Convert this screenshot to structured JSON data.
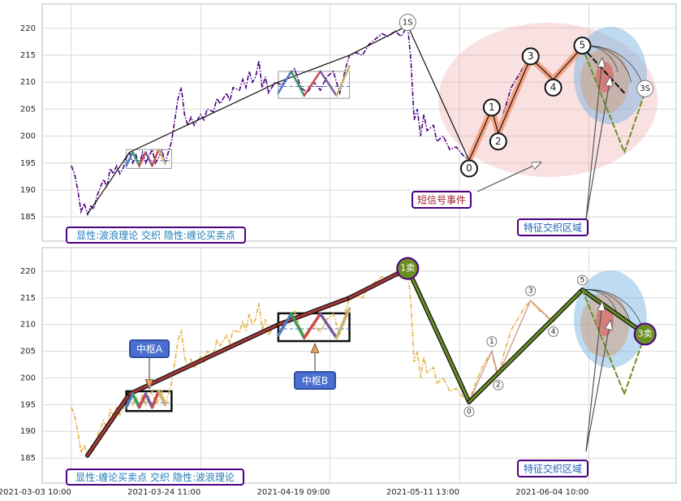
{
  "chart_data": [
    {
      "type": "line",
      "xlim": [
        -9,
        187
      ],
      "xticks": [
        0,
        40,
        80,
        120,
        160
      ],
      "ylim": [
        180.5,
        224.5
      ],
      "yticks": [
        185,
        190,
        195,
        200,
        205,
        210,
        215,
        220
      ],
      "grid": true,
      "series": [
        {
          "role": "price",
          "color": "#4b0082",
          "dash": "dashdot",
          "x": [
            0,
            1,
            2,
            3,
            4,
            5,
            6,
            7,
            8,
            10,
            11,
            12,
            13,
            14,
            15,
            16,
            17,
            18,
            19,
            20,
            21,
            22,
            23,
            25,
            26,
            27,
            28,
            29,
            31,
            32,
            33,
            34,
            35,
            36,
            37,
            38,
            40,
            41,
            42,
            44,
            45,
            46,
            48,
            49,
            50,
            52,
            53,
            54,
            55,
            56,
            57,
            58,
            59,
            60,
            61,
            63,
            65,
            67,
            69,
            71,
            73,
            75,
            77,
            79,
            81,
            83,
            85,
            86,
            88,
            90,
            92,
            94,
            96,
            98,
            100,
            102,
            104,
            105,
            106,
            107,
            108,
            109,
            110,
            112,
            113,
            115,
            117,
            119,
            121,
            123,
            125,
            127,
            129,
            130,
            131,
            132,
            134,
            136,
            138,
            140,
            142,
            144,
            146,
            148,
            149,
            151,
            153,
            155,
            158
          ],
          "values": [
            194.5,
            193,
            190,
            186,
            187.5,
            185.5,
            187,
            186.5,
            189,
            192,
            190.5,
            194,
            193,
            194.5,
            193,
            194,
            196,
            197,
            195,
            196.5,
            194.5,
            197,
            195,
            197.5,
            195,
            196,
            197.5,
            195,
            199,
            203,
            207,
            209,
            204,
            202,
            203.5,
            202,
            204,
            203,
            205,
            204.5,
            207,
            206,
            208,
            206.5,
            209,
            208.5,
            210.5,
            209,
            212,
            210,
            211,
            214,
            209,
            211,
            208,
            210,
            209.5,
            211,
            212.5,
            209,
            208,
            210,
            208.5,
            211,
            212,
            208,
            213,
            215,
            215.5,
            215,
            217,
            218,
            219,
            218.5,
            219.5,
            218.5,
            220.5,
            214,
            203,
            205,
            200,
            204,
            201,
            202,
            199,
            200,
            197.5,
            198,
            196.5,
            195.5,
            199,
            202,
            204,
            205,
            202,
            200.5,
            205,
            209,
            211,
            213,
            214.5,
            213,
            212,
            211,
            210.5,
            212,
            213.5,
            215,
            216.5
          ]
        },
        {
          "role": "segments",
          "color": "#f4a484",
          "width": 8,
          "x": [
            123,
            130,
            132,
            142,
            149,
            158
          ],
          "values": [
            195.5,
            205,
            200.5,
            214.5,
            210.5,
            216.5
          ]
        },
        {
          "role": "segments",
          "color": "#111111",
          "width": 1.2,
          "x": [
            5,
            18,
            64,
            86,
            104,
            123,
            130,
            132,
            142,
            149,
            158
          ],
          "values": [
            185.5,
            197,
            210,
            215,
            220.5,
            195.5,
            205,
            200.5,
            214.5,
            210.5,
            216.5
          ],
          "point_labels": [
            null,
            null,
            null,
            null,
            "1S",
            "0",
            "1",
            "2",
            "3",
            "4",
            "5"
          ]
        },
        {
          "role": "segments",
          "color": "#111111",
          "width": 2,
          "dash": "dashed",
          "x": [
            158,
            171
          ],
          "values": [
            216.5,
            208
          ]
        },
        {
          "role": "segments",
          "color": "#6b8e23",
          "width": 2,
          "dash": "dashed",
          "x": [
            158,
            171,
            177.4
          ],
          "values": [
            216.5,
            197,
            208.2
          ],
          "point_labels": [
            null,
            null,
            "3S"
          ]
        },
        {
          "role": "segments",
          "colors": [
            "#4a7bbf",
            "#3a9a5a",
            "#c94a4a",
            "#7a5aa0",
            "#c94a4a",
            "#c8b070"
          ],
          "width": 2.5,
          "x": [
            17,
            19,
            21,
            23,
            25,
            27,
            29
          ],
          "values": [
            194.5,
            197,
            194.5,
            197,
            194.5,
            197.5,
            195
          ]
        },
        {
          "role": "segments",
          "colors": [
            "#4a7bbf",
            "#3a9a5a",
            "#c94a4a",
            "#7a5aa0",
            "#c8b070"
          ],
          "width": 2.5,
          "x": [
            64,
            68,
            72,
            77,
            82,
            86
          ],
          "values": [
            208,
            212,
            207.5,
            212,
            207.5,
            213
          ]
        }
      ],
      "boxes": [
        {
          "x": [
            17,
            31
          ],
          "y": [
            194,
            197.5
          ]
        },
        {
          "x": [
            64,
            86
          ],
          "y": [
            207,
            212
          ]
        }
      ],
      "annotations": [
        "显性:波浪理论 交织 隐性:缠论买卖点",
        "短信号事件",
        "特征交织区域"
      ]
    },
    {
      "type": "line",
      "xlim": [
        -9,
        187
      ],
      "xticks": [
        {
          "value": 0,
          "label": "2021-03-03 10:00"
        },
        {
          "value": 40,
          "label": "2021-03-24 11:00"
        },
        {
          "value": 80,
          "label": "2021-04-19 09:00"
        },
        {
          "value": 120,
          "label": "2021-05-11 13:00"
        },
        {
          "value": 160,
          "label": "2021-06-04 10:00"
        }
      ],
      "ylim": [
        180.3,
        224.4
      ],
      "yticks": [
        185,
        190,
        195,
        200,
        205,
        210,
        215,
        220
      ],
      "grid": true,
      "series": [
        {
          "role": "price",
          "color": "#e8b040",
          "dash": "dashdot",
          "x": [
            0,
            1,
            2,
            3,
            4,
            5,
            6,
            7,
            8,
            10,
            11,
            12,
            13,
            14,
            15,
            16,
            17,
            18,
            19,
            20,
            21,
            22,
            23,
            25,
            26,
            27,
            28,
            29,
            31,
            32,
            33,
            34,
            35,
            36,
            37,
            38,
            40,
            41,
            42,
            44,
            45,
            46,
            48,
            49,
            50,
            52,
            53,
            54,
            55,
            56,
            57,
            58,
            59,
            60,
            61,
            63,
            65,
            67,
            69,
            71,
            73,
            75,
            77,
            79,
            81,
            83,
            85,
            86,
            88,
            90,
            92,
            94,
            96,
            98,
            100,
            102,
            104,
            105,
            106,
            107,
            108,
            109,
            110,
            112,
            113,
            115,
            117,
            119,
            121,
            123,
            125,
            127,
            129,
            130,
            131,
            132,
            134,
            136,
            138,
            140,
            142,
            144,
            146,
            148,
            149,
            151,
            153,
            155,
            158
          ],
          "values": [
            194.5,
            193,
            190,
            186,
            187.5,
            185.5,
            187,
            186.5,
            189,
            192,
            190.5,
            194,
            193,
            194.5,
            193,
            194,
            196,
            197,
            195,
            196.5,
            194.5,
            197,
            195,
            197.5,
            195,
            196,
            197.5,
            195,
            199,
            203,
            207,
            209,
            204,
            202,
            203.5,
            202,
            204,
            203,
            205,
            204.5,
            207,
            206,
            208,
            206.5,
            209,
            208.5,
            210.5,
            209,
            212,
            210,
            211,
            214,
            209,
            211,
            208,
            210,
            209.5,
            211,
            212.5,
            209,
            208,
            210,
            208.5,
            211,
            212,
            208,
            213,
            215,
            215.5,
            215,
            217,
            218,
            219,
            218.5,
            219.5,
            218.5,
            220.5,
            214,
            203,
            205,
            200,
            204,
            201,
            202,
            199,
            200,
            197.5,
            198,
            196.5,
            195.5,
            199,
            202,
            204,
            205,
            202,
            200.5,
            205,
            209,
            211,
            213,
            214.5,
            213,
            212,
            211,
            210.5,
            212,
            213.5,
            215,
            216.5
          ]
        },
        {
          "role": "segments",
          "colors": [
            "#a83838",
            "#a83838",
            "#a83838",
            "#a83838",
            "#6b8e23"
          ],
          "width": 3,
          "outline": true,
          "x": [
            5,
            18,
            64,
            86,
            104,
            123
          ],
          "values": [
            185.5,
            197,
            210,
            215,
            220.5,
            195.5
          ],
          "point_labels": [
            null,
            null,
            null,
            null,
            "1卖",
            "0"
          ]
        },
        {
          "role": "segments",
          "color": "#c89080",
          "width": 1.2,
          "x": [
            123,
            130,
            132,
            142,
            149,
            158
          ],
          "values": [
            195.5,
            205,
            200.5,
            214.5,
            210.5,
            216.5
          ],
          "point_labels": [
            null,
            "1",
            "2",
            "3",
            "4",
            "5"
          ]
        },
        {
          "role": "segments",
          "color": "#6b8e23",
          "width": 3,
          "outline": true,
          "x": [
            123,
            158
          ],
          "values": [
            195.5,
            216.5
          ]
        },
        {
          "role": "segments",
          "color": "#6b8e23",
          "width": 3,
          "outline": true,
          "x": [
            158,
            177.4
          ],
          "values": [
            216.5,
            208.2
          ],
          "point_labels": [
            null,
            "3卖"
          ]
        },
        {
          "role": "segments",
          "color": "#6b8e23",
          "width": 2,
          "dash": "dashed",
          "x": [
            158,
            171,
            177.4
          ],
          "values": [
            216.5,
            197,
            208.2
          ]
        },
        {
          "role": "segments",
          "colors": [
            "#4a7bbf",
            "#3a9a5a",
            "#c94a4a",
            "#7a5aa0",
            "#c94a4a",
            "#c8b070"
          ],
          "width": 3.5,
          "x": [
            17,
            19,
            21,
            23,
            25,
            27,
            29
          ],
          "values": [
            194.5,
            197,
            194.5,
            197,
            194.5,
            197.5,
            195
          ]
        },
        {
          "role": "segments",
          "colors": [
            "#4a7bbf",
            "#3a9a5a",
            "#c94a4a",
            "#7a5aa0",
            "#c8b070"
          ],
          "width": 3.5,
          "x": [
            64,
            68,
            72,
            77,
            82,
            86
          ],
          "values": [
            208,
            212,
            207.5,
            212,
            207.5,
            213
          ]
        }
      ],
      "boxes": [
        {
          "x": [
            17,
            31
          ],
          "y": [
            193.8,
            197.5
          ]
        },
        {
          "x": [
            64,
            86
          ],
          "y": [
            206.9,
            212.1
          ]
        }
      ],
      "annotations": [
        "显性:缠论买卖点 交织 隐性:波浪理论",
        "中枢A",
        "中枢B",
        "特征交织区域"
      ]
    }
  ]
}
